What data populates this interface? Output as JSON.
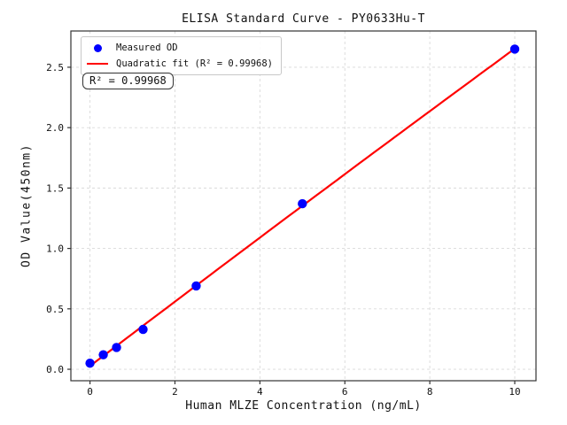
{
  "chart_data": {
    "type": "scatter",
    "title": "ELISA Standard Curve - PY0633Hu-T",
    "xlabel": "Human MLZE Concentration (ng/mL)",
    "ylabel": "OD Value(450nm)",
    "xlim": [
      -0.45,
      10.5
    ],
    "ylim": [
      -0.095,
      2.8
    ],
    "x_ticks": [
      0,
      2,
      4,
      6,
      8,
      10
    ],
    "y_ticks": [
      0.0,
      0.5,
      1.0,
      1.5,
      2.0,
      2.5
    ],
    "grid": true,
    "grid_style": "dashed",
    "legend_position": "upper-left",
    "series": [
      {
        "name": "Measured OD",
        "type": "scatter",
        "color": "#0000ff",
        "x": [
          0,
          0.313,
          0.625,
          1.25,
          2.5,
          5,
          10
        ],
        "y": [
          0.05,
          0.12,
          0.18,
          0.33,
          0.69,
          1.37,
          2.65
        ]
      },
      {
        "name": "Quadratic fit (R² = 0.99968)",
        "type": "line",
        "fit": "quadratic",
        "color": "#ff0000",
        "x_range": [
          0,
          10
        ]
      }
    ],
    "annotation": "R² = 0.99968",
    "r_squared": 0.99968,
    "colors": {
      "grid": "#d9d9d9",
      "spine": "#333333",
      "tick_text": "#111111",
      "background": "#ffffff"
    }
  }
}
